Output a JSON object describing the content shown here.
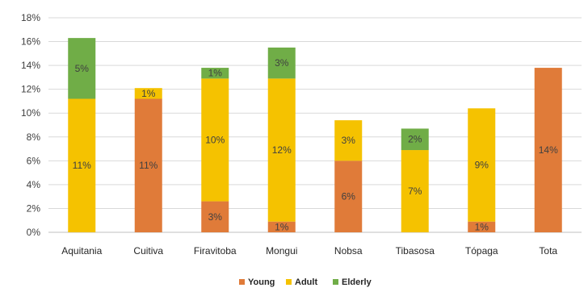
{
  "chart_data": {
    "type": "bar",
    "stacked": true,
    "categories": [
      "Aquitania",
      "Cuitiva",
      "Firavitoba",
      "Mongui",
      "Nobsa",
      "Tibasosa",
      "Tópaga",
      "Tota"
    ],
    "series": [
      {
        "name": "Young",
        "color": "#E07B39",
        "values": [
          0,
          11.2,
          2.6,
          0.9,
          6.0,
          0,
          0.9,
          13.8
        ],
        "labels": [
          "",
          "11%",
          "3%",
          "1%",
          "6%",
          "",
          "1%",
          "14%"
        ]
      },
      {
        "name": "Adult",
        "color": "#F5C200",
        "values": [
          11.2,
          0.9,
          10.3,
          12.0,
          3.4,
          6.9,
          9.5,
          0
        ],
        "labels": [
          "11%",
          "1%",
          "10%",
          "12%",
          "3%",
          "7%",
          "9%",
          ""
        ]
      },
      {
        "name": "Elderly",
        "color": "#70AD47",
        "values": [
          5.1,
          0,
          0.9,
          2.6,
          0,
          1.8,
          0,
          0
        ],
        "labels": [
          "5%",
          "",
          "1%",
          "3%",
          "",
          "2%",
          "",
          ""
        ]
      }
    ],
    "ylim": [
      0,
      18
    ],
    "yticks": [
      "0%",
      "2%",
      "4%",
      "6%",
      "8%",
      "10%",
      "12%",
      "14%",
      "16%",
      "18%"
    ],
    "grid": true,
    "legend_position": "bottom"
  }
}
